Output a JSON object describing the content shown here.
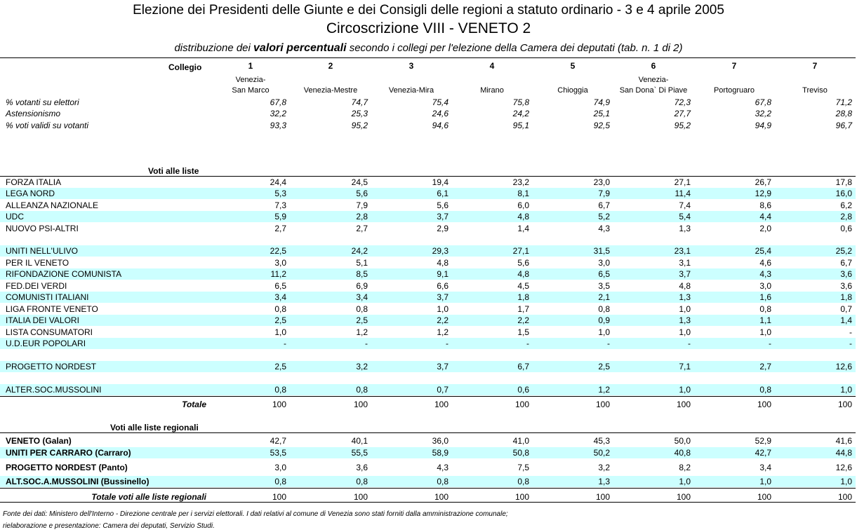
{
  "header": {
    "title": "Elezione dei Presidenti delle Giunte e dei Consigli delle regioni a statuto ordinario - 3 e 4 aprile 2005",
    "subtitle": "Circoscrizione VIII - VENETO 2",
    "caption": [
      "distribuzione dei",
      "valori percentuali",
      "secondo i collegi per l'elezione della Camera dei deputati (tab. n. 1 di 2)"
    ]
  },
  "table": {
    "collegio_label": "Collegio",
    "columns": [
      {
        "number": 1,
        "name": [
          "Venezia-",
          "San Marco"
        ]
      },
      {
        "number": 2,
        "name": [
          "Venezia-Mestre"
        ]
      },
      {
        "number": 3,
        "name": [
          "Venezia-Mira"
        ]
      },
      {
        "number": 4,
        "name": [
          "Mirano"
        ]
      },
      {
        "number": 5,
        "name": [
          "Chioggia"
        ]
      },
      {
        "number": 6,
        "name": [
          "Venezia-",
          "San Dona` Di Piave"
        ]
      },
      {
        "number": 7,
        "name": [
          "Portogruaro"
        ]
      },
      {
        "number": 7,
        "name": [
          "Treviso"
        ]
      }
    ],
    "stats": [
      {
        "label": "% votanti su elettori",
        "values": [
          "67,8",
          "74,7",
          "75,4",
          "75,8",
          "74,9",
          "72,3",
          "67,8",
          "71,2"
        ]
      },
      {
        "label": "Astensionismo",
        "values": [
          "32,2",
          "25,3",
          "24,6",
          "24,2",
          "25,1",
          "27,7",
          "32,2",
          "28,8"
        ]
      },
      {
        "label": "% voti validi su votanti",
        "values": [
          "93,3",
          "95,2",
          "94,6",
          "95,1",
          "92,5",
          "95,2",
          "94,9",
          "96,7"
        ]
      }
    ],
    "lists_heading": "Voti alle liste",
    "lists": [
      {
        "label": "FORZA ITALIA",
        "values": [
          "24,4",
          "24,5",
          "19,4",
          "23,2",
          "23,0",
          "27,1",
          "26,7",
          "17,8"
        ]
      },
      {
        "label": "LEGA NORD",
        "values": [
          "5,3",
          "5,6",
          "6,1",
          "8,1",
          "7,9",
          "11,4",
          "12,9",
          "16,0"
        ]
      },
      {
        "label": "ALLEANZA NAZIONALE",
        "values": [
          "7,3",
          "7,9",
          "5,6",
          "6,0",
          "6,7",
          "7,4",
          "8,6",
          "6,2"
        ]
      },
      {
        "label": "UDC",
        "values": [
          "5,9",
          "2,8",
          "3,7",
          "4,8",
          "5,2",
          "5,4",
          "4,4",
          "2,8"
        ]
      },
      {
        "label": "NUOVO PSI-ALTRI",
        "values": [
          "2,7",
          "2,7",
          "2,9",
          "1,4",
          "4,3",
          "1,3",
          "2,0",
          "0,6"
        ]
      },
      {
        "label": "UNITI NELL'ULIVO",
        "values": [
          "22,5",
          "24,2",
          "29,3",
          "27,1",
          "31,5",
          "23,1",
          "25,4",
          "25,2"
        ]
      },
      {
        "label": "PER IL VENETO",
        "values": [
          "3,0",
          "5,1",
          "4,8",
          "5,6",
          "3,0",
          "3,1",
          "4,6",
          "6,7"
        ]
      },
      {
        "label": "RIFONDAZIONE COMUNISTA",
        "values": [
          "11,2",
          "8,5",
          "9,1",
          "4,8",
          "6,5",
          "3,7",
          "4,3",
          "3,6"
        ]
      },
      {
        "label": "FED.DEI VERDI",
        "values": [
          "6,5",
          "6,9",
          "6,6",
          "4,5",
          "3,5",
          "4,8",
          "3,0",
          "3,6"
        ]
      },
      {
        "label": "COMUNISTI ITALIANI",
        "values": [
          "3,4",
          "3,4",
          "3,7",
          "1,8",
          "2,1",
          "1,3",
          "1,6",
          "1,8"
        ]
      },
      {
        "label": "LIGA FRONTE VENETO",
        "values": [
          "0,8",
          "0,8",
          "1,0",
          "1,7",
          "0,8",
          "1,0",
          "0,8",
          "0,7"
        ]
      },
      {
        "label": "ITALIA DEI VALORI",
        "values": [
          "2,5",
          "2,5",
          "2,2",
          "2,2",
          "0,9",
          "1,3",
          "1,1",
          "1,4"
        ]
      },
      {
        "label": "LISTA CONSUMATORI",
        "values": [
          "1,0",
          "1,2",
          "1,2",
          "1,5",
          "1,0",
          "1,0",
          "1,0",
          "-"
        ]
      },
      {
        "label": "U.D.EUR POPOLARI",
        "values": [
          "-",
          "-",
          "-",
          "-",
          "-",
          "-",
          "-",
          "-"
        ]
      },
      {
        "label": "PROGETTO NORDEST",
        "values": [
          "2,5",
          "3,2",
          "3,7",
          "6,7",
          "2,5",
          "7,1",
          "2,7",
          "12,6"
        ]
      },
      {
        "label": "ALTER.SOC.MUSSOLINI",
        "values": [
          "0,8",
          "0,8",
          "0,7",
          "0,6",
          "1,2",
          "1,0",
          "0,8",
          "1,0"
        ]
      }
    ],
    "lists_total": {
      "label": "Totale",
      "values": [
        "100",
        "100",
        "100",
        "100",
        "100",
        "100",
        "100",
        "100"
      ]
    },
    "regional_heading": "Voti alle liste regionali",
    "regional": [
      {
        "label": "VENETO (Galan)",
        "values": [
          "42,7",
          "40,1",
          "36,0",
          "41,0",
          "45,3",
          "50,0",
          "52,9",
          "41,6"
        ]
      },
      {
        "label": "UNITI PER CARRARO (Carraro)",
        "values": [
          "53,5",
          "55,5",
          "58,9",
          "50,8",
          "50,2",
          "40,8",
          "42,7",
          "44,8"
        ]
      },
      {
        "label": "PROGETTO NORDEST (Panto)",
        "values": [
          "3,0",
          "3,6",
          "4,3",
          "7,5",
          "3,2",
          "8,2",
          "3,4",
          "12,6"
        ]
      },
      {
        "label": "ALT.SOC.A.MUSSOLINI (Bussinello)",
        "values": [
          "0,8",
          "0,8",
          "0,8",
          "0,8",
          "1,3",
          "1,0",
          "1,0",
          "1,0"
        ]
      }
    ],
    "regional_total": {
      "label": "Totale voti alle liste regionali",
      "values": [
        "100",
        "100",
        "100",
        "100",
        "100",
        "100",
        "100",
        "100"
      ]
    }
  },
  "footnote": [
    "Fonte dei dati: Ministero dell'Interno - Direzione centrale per i servizi elettorali. I dati relativi al comune di Venezia sono stati forniti dalla amministrazione comunale;",
    "rielaborazione e presentazione: Camera dei deputati, Servizio Studi."
  ]
}
